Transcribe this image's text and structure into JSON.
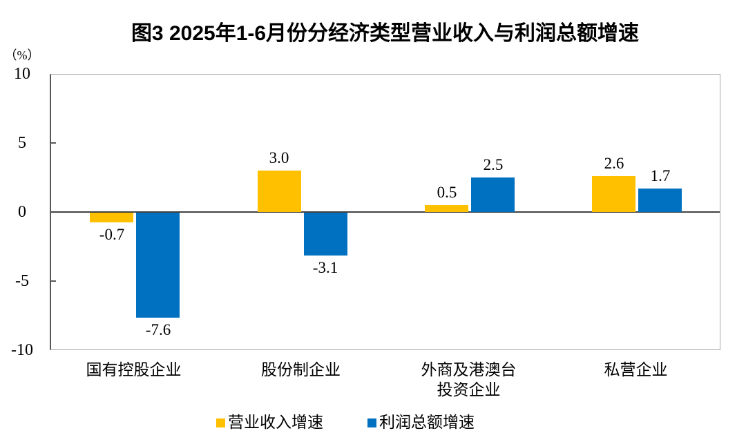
{
  "chart_data": {
    "type": "bar",
    "title": "图3 2025年1-6月份分经济类型营业收入与利润总额增速",
    "ylabel": "（%）",
    "ylim": [
      -10,
      10
    ],
    "yticks": [
      10,
      5,
      0,
      -5,
      -10
    ],
    "ytick_labels": [
      "10",
      "5",
      "0",
      "-5",
      "-10"
    ],
    "grid": false,
    "legend_position": "bottom",
    "categories": [
      "国有控股企业",
      "股份制企业",
      "外商及港澳台\n投资企业",
      "私营企业"
    ],
    "series": [
      {
        "key": "revenue",
        "name": "营业收入增速",
        "color": "#FFC000",
        "values": [
          -0.7,
          3.0,
          0.5,
          2.6
        ],
        "value_labels": [
          "-0.7",
          "3.0",
          "0.5",
          "2.6"
        ]
      },
      {
        "key": "profit",
        "name": "利润总额增速",
        "color": "#0070C0",
        "values": [
          -7.6,
          -3.1,
          2.5,
          1.7
        ],
        "value_labels": [
          "-7.6",
          "-3.1",
          "2.5",
          "1.7"
        ]
      }
    ]
  },
  "colors": {
    "revenue_series": "#FFC000",
    "profit_series": "#0070C0",
    "plot_border": "#A6A6A6",
    "y_axis_line": "#595959",
    "zero_line": "#404040"
  }
}
